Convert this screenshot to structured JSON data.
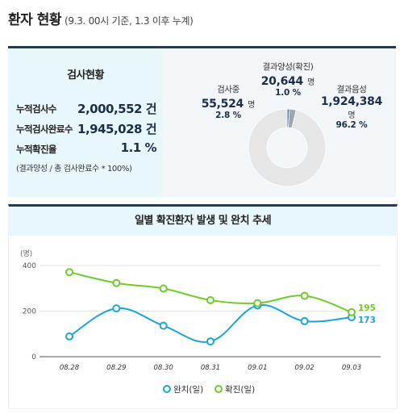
{
  "header": {
    "title": "환자 현황",
    "subtitle": "(9.3. 00시 기준, 1.3 이후 누계)"
  },
  "testing": {
    "title": "검사현황",
    "rows": [
      {
        "label": "누적검사수",
        "value": "2,000,552 건"
      },
      {
        "label": "누적검사완료수",
        "value": "1,945,028 건"
      },
      {
        "label": "누적확진율",
        "value": "1.1 %"
      }
    ],
    "note": "(결과양성 / 총 검사완료수 * 100%)"
  },
  "donut": {
    "positive": {
      "label": "결과양성(확진)",
      "value": "20,644",
      "unit": "명",
      "pct": "1.0 %",
      "share": 1.0,
      "color": "#4a7fb0"
    },
    "testing": {
      "label": "검사중",
      "value": "55,524",
      "unit": "명",
      "pct": "2.8 %",
      "share": 2.8,
      "color": "#9aa6ad"
    },
    "negative": {
      "label": "결과음성",
      "value": "1,924,384",
      "unit": "명",
      "pct": "96.2 %",
      "share": 96.2,
      "color": "#e6e6e6"
    }
  },
  "chart_data": {
    "type": "line",
    "title": "일별 확진환자 발생 및 완치 추세",
    "ylabel": "(명)",
    "ylim": [
      0,
      400
    ],
    "yticks": [
      "0",
      "200",
      "400"
    ],
    "grid": true,
    "legend_position": "bottom",
    "categories": [
      "08.28",
      "08.29",
      "08.30",
      "08.31",
      "09.01",
      "09.02",
      "09.03"
    ],
    "series": [
      {
        "name": "완치(일)",
        "color": "#1aa3d6",
        "values": [
          89,
          212,
          136,
          67,
          225,
          156,
          173
        ],
        "end_label": "173"
      },
      {
        "name": "확진(일)",
        "color": "#6fcb2d",
        "values": [
          371,
          323,
          299,
          248,
          235,
          267,
          195
        ],
        "end_label": "195"
      }
    ]
  }
}
